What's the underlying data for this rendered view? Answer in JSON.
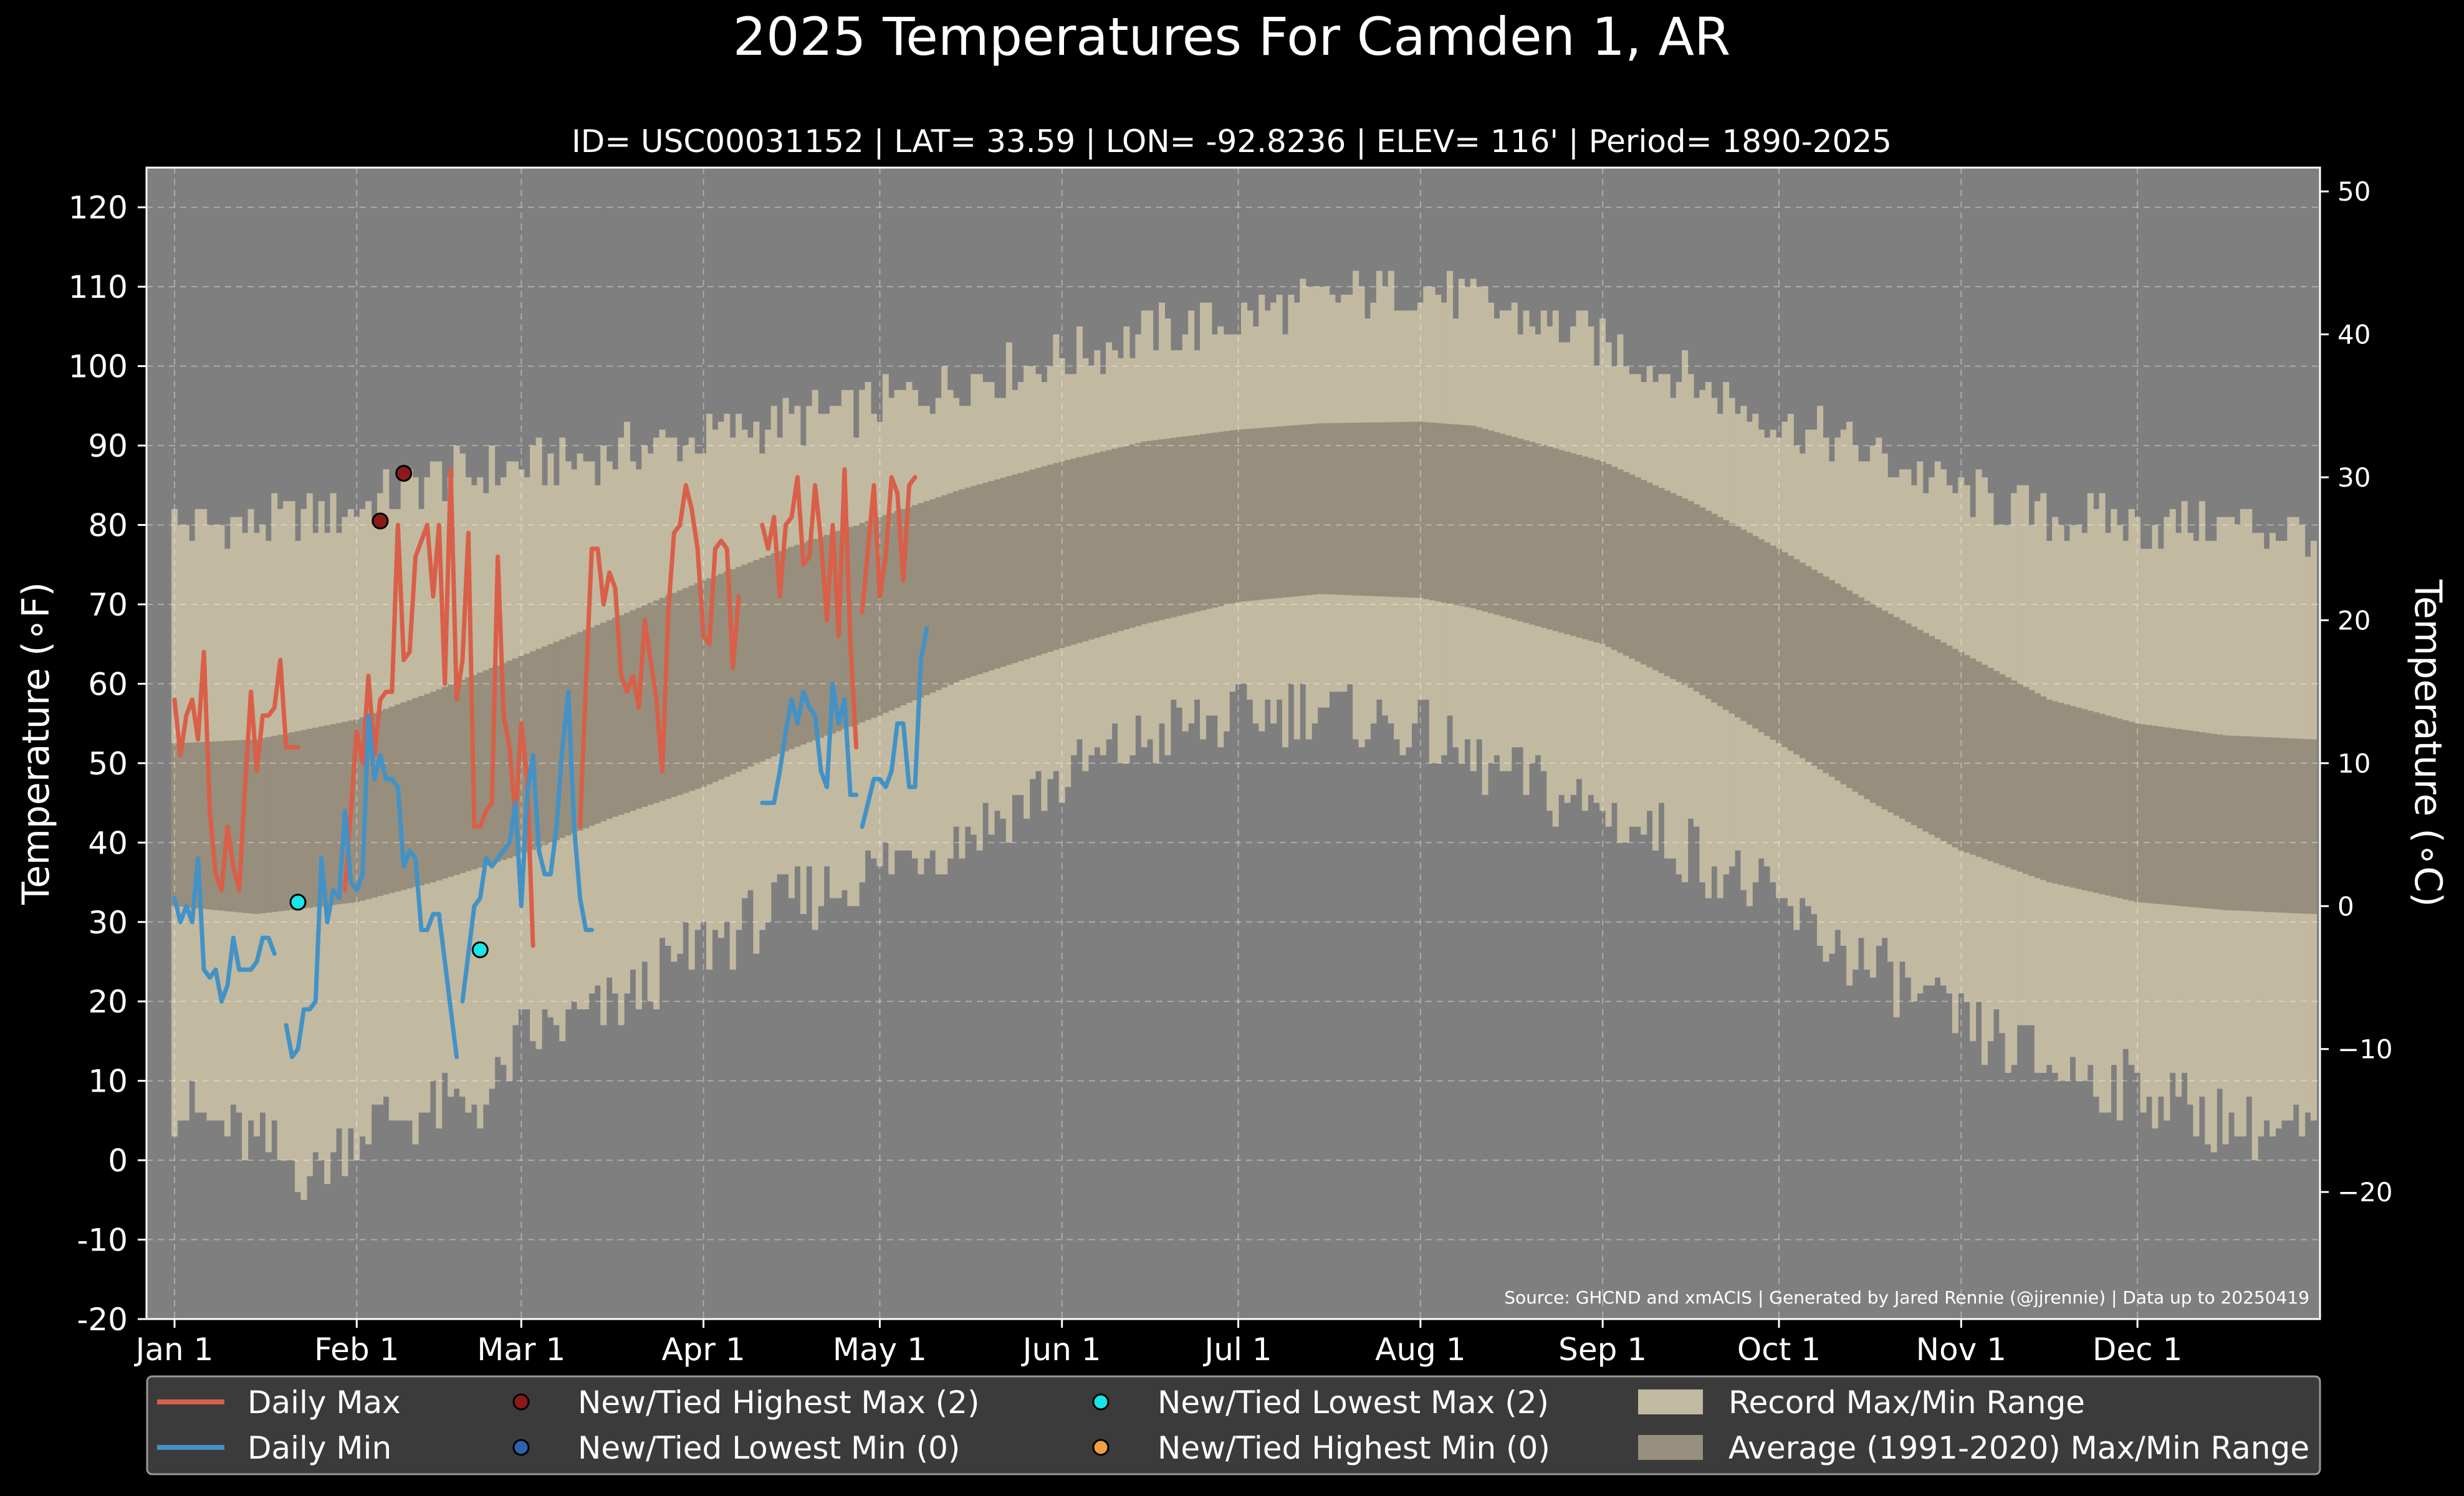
{
  "chart_data": {
    "type": "area",
    "title": "2025 Temperatures For Camden 1, AR",
    "subtitle": "ID= USC00031152 | LAT= 33.59 | LON= -92.8236 | ELEV= 116' | Period= 1890-2025",
    "ylabel_left": "Temperature ($^\\circ$F)",
    "ylabel_left_text": "Temperature (∘F)",
    "ylabel_right_text": "Temperature (∘C)",
    "source_note": "Source: GHCND and xmACIS | Generated by Jared Rennie (@jjrennie) | Data up to 20250419",
    "ylim_f": [
      -20,
      125
    ],
    "yticks_f": [
      "-20",
      "-10",
      "0",
      "10",
      "20",
      "30",
      "40",
      "50",
      "60",
      "70",
      "80",
      "90",
      "100",
      "110",
      "120"
    ],
    "yticks_c": [
      "−20",
      "−10",
      "0",
      "10",
      "20",
      "30",
      "40",
      "50"
    ],
    "x_range_days": [
      1,
      365
    ],
    "months": [
      {
        "label": "Jan 1",
        "day": 1
      },
      {
        "label": "Feb 1",
        "day": 32
      },
      {
        "label": "Mar 1",
        "day": 60
      },
      {
        "label": "Apr 1",
        "day": 91
      },
      {
        "label": "May 1",
        "day": 121
      },
      {
        "label": "Jun 1",
        "day": 152
      },
      {
        "label": "Jul 1",
        "day": 182
      },
      {
        "label": "Aug 1",
        "day": 213
      },
      {
        "label": "Sep 1",
        "day": 244
      },
      {
        "label": "Oct 1",
        "day": 274
      },
      {
        "label": "Nov 1",
        "day": 305
      },
      {
        "label": "Dec 1",
        "day": 335
      }
    ],
    "record_max_profile": [
      [
        1,
        80
      ],
      [
        15,
        80
      ],
      [
        32,
        82
      ],
      [
        45,
        86
      ],
      [
        60,
        87
      ],
      [
        75,
        89
      ],
      [
        91,
        91
      ],
      [
        105,
        93
      ],
      [
        121,
        95
      ],
      [
        135,
        98
      ],
      [
        152,
        101
      ],
      [
        166,
        104
      ],
      [
        182,
        106
      ],
      [
        196,
        108
      ],
      [
        213,
        110
      ],
      [
        222,
        108
      ],
      [
        244,
        103
      ],
      [
        259,
        98
      ],
      [
        274,
        93
      ],
      [
        290,
        89
      ],
      [
        305,
        84
      ],
      [
        320,
        81
      ],
      [
        335,
        80
      ],
      [
        350,
        80
      ],
      [
        365,
        79
      ]
    ],
    "record_min_profile": [
      [
        1,
        7
      ],
      [
        15,
        2
      ],
      [
        25,
        -2
      ],
      [
        32,
        4
      ],
      [
        45,
        6
      ],
      [
        55,
        8
      ],
      [
        60,
        15
      ],
      [
        75,
        19
      ],
      [
        91,
        27
      ],
      [
        105,
        32
      ],
      [
        121,
        37
      ],
      [
        135,
        41
      ],
      [
        152,
        48
      ],
      [
        166,
        53
      ],
      [
        182,
        56
      ],
      [
        196,
        57
      ],
      [
        213,
        54
      ],
      [
        222,
        50
      ],
      [
        244,
        44
      ],
      [
        259,
        39
      ],
      [
        274,
        32
      ],
      [
        290,
        24
      ],
      [
        305,
        17
      ],
      [
        320,
        12
      ],
      [
        335,
        9
      ],
      [
        350,
        5
      ],
      [
        365,
        3
      ]
    ],
    "average_max_profile": [
      [
        1,
        52.5
      ],
      [
        15,
        53
      ],
      [
        32,
        55.5
      ],
      [
        45,
        59
      ],
      [
        60,
        63.5
      ],
      [
        75,
        68
      ],
      [
        91,
        73
      ],
      [
        105,
        77
      ],
      [
        121,
        81
      ],
      [
        135,
        84.5
      ],
      [
        152,
        88
      ],
      [
        166,
        90.5
      ],
      [
        182,
        92
      ],
      [
        196,
        92.8
      ],
      [
        213,
        93
      ],
      [
        222,
        92.5
      ],
      [
        244,
        88
      ],
      [
        259,
        83
      ],
      [
        274,
        77
      ],
      [
        290,
        70
      ],
      [
        305,
        64
      ],
      [
        320,
        58
      ],
      [
        335,
        55
      ],
      [
        350,
        53.5
      ],
      [
        365,
        53
      ]
    ],
    "average_min_profile": [
      [
        1,
        32
      ],
      [
        15,
        31
      ],
      [
        32,
        32.5
      ],
      [
        45,
        35
      ],
      [
        60,
        38.5
      ],
      [
        75,
        43
      ],
      [
        91,
        47
      ],
      [
        105,
        51.5
      ],
      [
        121,
        56
      ],
      [
        135,
        60.5
      ],
      [
        152,
        64.5
      ],
      [
        166,
        67.5
      ],
      [
        182,
        70.3
      ],
      [
        196,
        71.3
      ],
      [
        213,
        70.8
      ],
      [
        222,
        69.5
      ],
      [
        244,
        65
      ],
      [
        259,
        59.5
      ],
      [
        274,
        52.5
      ],
      [
        290,
        45
      ],
      [
        305,
        39
      ],
      [
        320,
        35
      ],
      [
        335,
        32.5
      ],
      [
        350,
        31.5
      ],
      [
        365,
        31
      ]
    ],
    "series": [
      {
        "name": "Daily Max",
        "color": "#d95f48",
        "segments": [
          {
            "start_day": 1,
            "values": [
              58,
              51,
              56,
              58,
              53,
              64,
              44,
              36,
              34,
              42,
              37,
              34,
              47,
              59,
              49,
              56,
              56,
              57,
              63,
              52,
              52,
              52
            ]
          },
          {
            "start_day": 30,
            "values": [
              34,
              44,
              54,
              50,
              61,
              51,
              58,
              59,
              59,
              80,
              63,
              64,
              76,
              78,
              80,
              71,
              80,
              60,
              87,
              58,
              63,
              79,
              42,
              42,
              44,
              45,
              76,
              56,
              52,
              43,
              55,
              48,
              27
            ]
          },
          {
            "start_day": 70,
            "values": [
              42,
              60,
              77,
              77,
              70,
              74,
              72,
              61,
              59,
              61,
              57,
              68,
              63,
              58,
              49,
              69,
              79,
              80,
              85,
              82,
              77,
              66,
              65,
              77,
              78,
              77,
              62,
              71
            ]
          },
          {
            "start_day": 101,
            "values": [
              80,
              77,
              81,
              71,
              80,
              81,
              86,
              75,
              76,
              85,
              78,
              68,
              80,
              66,
              87,
              65,
              52
            ]
          },
          {
            "start_day": 118,
            "values": [
              69,
              77,
              85,
              71,
              76,
              86,
              84,
              73,
              85,
              86
            ]
          }
        ]
      },
      {
        "name": "Daily Min",
        "color": "#4292c6",
        "segments": [
          {
            "start_day": 1,
            "values": [
              33,
              30,
              32,
              30,
              38,
              24,
              23,
              24,
              20,
              22,
              28,
              24,
              24,
              24,
              25,
              28,
              28,
              26
            ]
          },
          {
            "start_day": 20,
            "values": [
              17,
              13,
              14,
              19,
              19,
              20,
              38,
              30,
              34,
              33,
              44,
              35,
              34,
              36,
              56,
              48,
              51,
              48,
              48,
              47,
              37,
              39,
              38,
              29,
              29,
              31,
              31,
              25,
              19,
              13
            ]
          },
          {
            "start_day": 50,
            "values": [
              20,
              26,
              32,
              33,
              38,
              37,
              38,
              39,
              40,
              45,
              32,
              46,
              51,
              39,
              36,
              36,
              42,
              52,
              59,
              42,
              33,
              29,
              29
            ]
          },
          {
            "start_day": 101,
            "values": [
              45,
              45,
              45,
              49,
              54,
              58,
              55,
              59,
              57,
              56,
              49,
              47,
              60,
              55,
              58,
              46,
              46
            ]
          },
          {
            "start_day": 118,
            "values": [
              42,
              45,
              48,
              48,
              47,
              49,
              55,
              55,
              47,
              47,
              63,
              67
            ]
          }
        ]
      }
    ],
    "record_markers": [
      {
        "type": "New/Tied Highest Max",
        "color": "#8b1a1a",
        "points": [
          {
            "day": 36,
            "value": 80.5
          },
          {
            "day": 40,
            "value": 86.5
          }
        ]
      },
      {
        "type": "New/Tied Lowest Max",
        "color": "#18e5e5",
        "points": [
          {
            "day": 22,
            "value": 32.5
          },
          {
            "day": 53,
            "value": 26.5
          }
        ]
      }
    ],
    "legend": [
      {
        "label": "Daily Max",
        "kind": "line",
        "color": "#d95f48"
      },
      {
        "label": "New/Tied Highest Max (2)",
        "kind": "marker",
        "color": "#8b1a1a"
      },
      {
        "label": "New/Tied Lowest Max (2)",
        "kind": "marker",
        "color": "#18e5e5"
      },
      {
        "label": "Record Max/Min Range",
        "kind": "patch",
        "color": "#c2b9a1"
      },
      {
        "label": "Daily Min",
        "kind": "line",
        "color": "#4292c6"
      },
      {
        "label": "New/Tied Lowest Min (0)",
        "kind": "marker",
        "color": "#2c62b0"
      },
      {
        "label": "New/Tied Highest Min (0)",
        "kind": "marker",
        "color": "#f0a040"
      },
      {
        "label": "Average (1991-2020) Max/Min Range",
        "kind": "patch",
        "color": "#978e7d"
      }
    ],
    "legend_placement": "bottom",
    "grid": true,
    "colors": {
      "background": "#000000",
      "plot_background": "#7f7f7f",
      "record_range": "#c2b9a1",
      "average_range": "#978e7d",
      "legend_background": "#3b3b3b"
    }
  }
}
